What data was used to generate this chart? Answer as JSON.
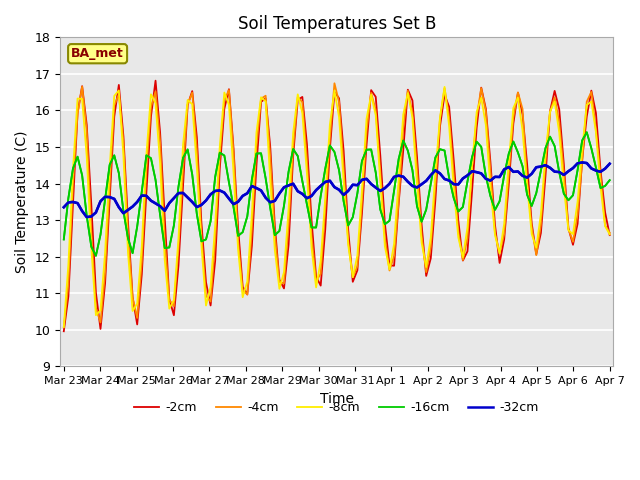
{
  "title": "Soil Temperatures Set B",
  "xlabel": "Time",
  "ylabel": "Soil Temperature (C)",
  "ylim": [
    9.0,
    18.0
  ],
  "yticks": [
    9.0,
    10.0,
    11.0,
    12.0,
    13.0,
    14.0,
    15.0,
    16.0,
    17.0,
    18.0
  ],
  "xtick_labels": [
    "Mar 23",
    "Mar 24",
    "Mar 25",
    "Mar 26",
    "Mar 27",
    "Mar 28",
    "Mar 29",
    "Mar 30",
    "Mar 31",
    "Apr 1",
    "Apr 2",
    "Apr 3",
    "Apr 4",
    "Apr 5",
    "Apr 6",
    "Apr 7"
  ],
  "legend_label": "BA_met",
  "series_labels": [
    "-2cm",
    "-4cm",
    "-8cm",
    "-16cm",
    "-32cm"
  ],
  "series_colors": [
    "#dd0000",
    "#ff8800",
    "#ffee00",
    "#00cc00",
    "#0000cc"
  ],
  "background_color": "#ffffff",
  "plot_bg_color": "#e8e8e8",
  "grid_color": "#ffffff"
}
